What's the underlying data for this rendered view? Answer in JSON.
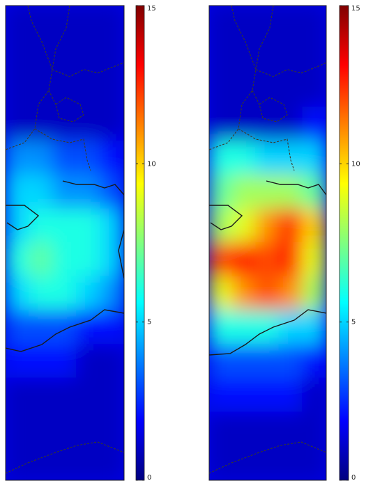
{
  "chart_data": [
    {
      "type": "heatmap",
      "colormap": "jet",
      "zlim": [
        0,
        15
      ],
      "zticks": [
        0,
        5,
        10,
        15
      ],
      "z": [
        [
          1,
          1,
          1,
          1,
          1
        ],
        [
          1,
          1,
          1,
          1,
          1
        ],
        [
          1,
          1,
          1,
          1,
          1
        ],
        [
          1,
          1,
          1,
          1,
          1
        ],
        [
          4,
          4,
          3,
          3,
          2
        ],
        [
          5,
          5,
          4,
          4,
          3
        ],
        [
          5,
          6,
          6,
          6,
          5
        ],
        [
          6,
          7,
          6,
          6,
          5
        ],
        [
          5,
          6,
          6,
          5,
          4
        ],
        [
          3,
          3,
          3,
          2,
          2
        ],
        [
          2,
          2,
          2,
          1,
          1
        ],
        [
          1,
          1,
          1,
          1,
          1
        ],
        [
          1,
          1,
          1,
          1,
          1
        ],
        [
          1,
          1,
          1,
          1,
          1
        ]
      ]
    },
    {
      "type": "heatmap",
      "colormap": "jet",
      "zlim": [
        0,
        15
      ],
      "zticks": [
        0,
        5,
        10,
        15
      ],
      "z": [
        [
          1,
          1,
          1,
          1,
          1
        ],
        [
          1,
          1,
          1,
          1,
          1
        ],
        [
          1,
          1,
          1,
          1,
          1
        ],
        [
          1,
          1,
          1,
          1,
          2
        ],
        [
          6,
          6,
          5,
          5,
          5
        ],
        [
          7,
          8,
          8,
          8,
          7
        ],
        [
          8,
          9,
          11,
          13,
          10
        ],
        [
          12,
          13,
          12,
          13,
          9
        ],
        [
          9,
          11,
          12,
          11,
          8
        ],
        [
          6,
          6,
          6,
          5,
          5
        ],
        [
          3,
          3,
          3,
          3,
          2
        ],
        [
          2,
          2,
          2,
          2,
          1
        ],
        [
          1,
          1,
          1,
          1,
          1
        ],
        [
          1,
          1,
          1,
          1,
          1
        ]
      ]
    }
  ]
}
